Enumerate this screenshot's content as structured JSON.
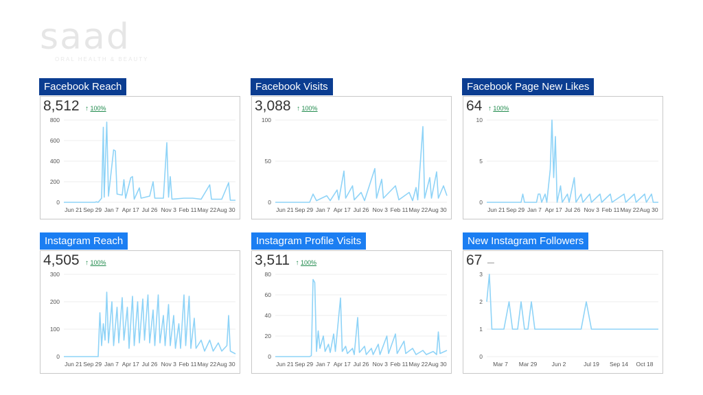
{
  "logo": {
    "wordmark": "saad",
    "tagline": "ORAL HEALTH & BEAUTY"
  },
  "colors": {
    "facebook_title_bg": "#0b3d91",
    "instagram_title_bg": "#1b7ef2",
    "line": "#8ed3f7",
    "positive_change": "#1f8a4c"
  },
  "panels": [
    {
      "id": "facebook-reach",
      "title": "Facebook Reach",
      "value": "8,512",
      "change_arrow": "↑",
      "change": "100%"
    },
    {
      "id": "facebook-visits",
      "title": "Facebook Visits",
      "value": "3,088",
      "change_arrow": "↑",
      "change": "100%"
    },
    {
      "id": "facebook-page-new-likes",
      "title": "Facebook Page New Likes",
      "value": "64",
      "change_arrow": "↑",
      "change": "100%"
    },
    {
      "id": "instagram-reach",
      "title": "Instagram Reach",
      "value": "4,505",
      "change_arrow": "↑",
      "change": "100%"
    },
    {
      "id": "instagram-profile-visits",
      "title": "Instagram Profile Visits",
      "value": "3,511",
      "change_arrow": "↑",
      "change": "100%"
    },
    {
      "id": "new-instagram-followers",
      "title": "New Instagram Followers",
      "value": "67",
      "change_arrow": "",
      "change": "",
      "change_dash": "—"
    }
  ],
  "chart_data": [
    {
      "type": "line",
      "title": "Facebook Reach",
      "ylim": [
        0,
        800
      ],
      "yticks": [
        0,
        200,
        400,
        600,
        800
      ],
      "grid": true,
      "xticks": [
        "Jun 21",
        "Sep 29",
        "Jan 7",
        "Apr 17",
        "Jul 26",
        "Nov 3",
        "Feb 11",
        "May 22",
        "Aug 30"
      ],
      "x_range": [
        0,
        1
      ],
      "series": [
        {
          "points": [
            [
              0,
              0
            ],
            [
              0.18,
              0
            ],
            [
              0.19,
              5
            ],
            [
              0.2,
              0
            ],
            [
              0.22,
              40
            ],
            [
              0.23,
              730
            ],
            [
              0.235,
              50
            ],
            [
              0.25,
              780
            ],
            [
              0.26,
              60
            ],
            [
              0.29,
              510
            ],
            [
              0.3,
              500
            ],
            [
              0.31,
              80
            ],
            [
              0.34,
              70
            ],
            [
              0.35,
              220
            ],
            [
              0.36,
              40
            ],
            [
              0.39,
              240
            ],
            [
              0.4,
              250
            ],
            [
              0.41,
              30
            ],
            [
              0.44,
              140
            ],
            [
              0.45,
              40
            ],
            [
              0.5,
              60
            ],
            [
              0.52,
              200
            ],
            [
              0.53,
              40
            ],
            [
              0.58,
              40
            ],
            [
              0.6,
              580
            ],
            [
              0.61,
              50
            ],
            [
              0.62,
              250
            ],
            [
              0.63,
              30
            ],
            [
              0.7,
              40
            ],
            [
              0.75,
              40
            ],
            [
              0.8,
              30
            ],
            [
              0.85,
              170
            ],
            [
              0.86,
              30
            ],
            [
              0.92,
              30
            ],
            [
              0.96,
              190
            ],
            [
              0.97,
              20
            ],
            [
              1,
              20
            ]
          ]
        }
      ]
    },
    {
      "type": "line",
      "title": "Facebook Visits",
      "ylim": [
        0,
        100
      ],
      "yticks": [
        0,
        50,
        100
      ],
      "grid": true,
      "xticks": [
        "Jun 21",
        "Sep 29",
        "Jan 7",
        "Apr 17",
        "Jul 26",
        "Nov 3",
        "Feb 11",
        "May 22",
        "Aug 30"
      ],
      "x_range": [
        0,
        1
      ],
      "series": [
        {
          "points": [
            [
              0,
              0
            ],
            [
              0.2,
              0
            ],
            [
              0.22,
              10
            ],
            [
              0.24,
              2
            ],
            [
              0.3,
              8
            ],
            [
              0.32,
              2
            ],
            [
              0.36,
              15
            ],
            [
              0.37,
              3
            ],
            [
              0.4,
              38
            ],
            [
              0.41,
              5
            ],
            [
              0.45,
              20
            ],
            [
              0.46,
              3
            ],
            [
              0.5,
              12
            ],
            [
              0.52,
              2
            ],
            [
              0.58,
              41
            ],
            [
              0.59,
              5
            ],
            [
              0.62,
              28
            ],
            [
              0.63,
              5
            ],
            [
              0.7,
              20
            ],
            [
              0.72,
              3
            ],
            [
              0.78,
              12
            ],
            [
              0.8,
              2
            ],
            [
              0.82,
              18
            ],
            [
              0.83,
              3
            ],
            [
              0.86,
              92
            ],
            [
              0.87,
              5
            ],
            [
              0.9,
              30
            ],
            [
              0.91,
              5
            ],
            [
              0.94,
              37
            ],
            [
              0.95,
              5
            ],
            [
              0.98,
              20
            ],
            [
              1,
              8
            ]
          ]
        }
      ]
    },
    {
      "type": "line",
      "title": "Facebook Page New Likes",
      "ylim": [
        0,
        10
      ],
      "yticks": [
        0,
        5,
        10
      ],
      "grid": true,
      "xticks": [
        "Jun 21",
        "Sep 29",
        "Jan 7",
        "Apr 17",
        "Jul 26",
        "Nov 3",
        "Feb 11",
        "May 22",
        "Aug 30"
      ],
      "x_range": [
        0,
        1
      ],
      "series": [
        {
          "points": [
            [
              0,
              0
            ],
            [
              0.2,
              0
            ],
            [
              0.21,
              1
            ],
            [
              0.22,
              0
            ],
            [
              0.29,
              0
            ],
            [
              0.3,
              1
            ],
            [
              0.31,
              1
            ],
            [
              0.32,
              0
            ],
            [
              0.34,
              1
            ],
            [
              0.35,
              0
            ],
            [
              0.37,
              4
            ],
            [
              0.38,
              10
            ],
            [
              0.39,
              3
            ],
            [
              0.4,
              8
            ],
            [
              0.41,
              0
            ],
            [
              0.43,
              2
            ],
            [
              0.44,
              0
            ],
            [
              0.47,
              1
            ],
            [
              0.48,
              0
            ],
            [
              0.5,
              2
            ],
            [
              0.51,
              3
            ],
            [
              0.52,
              0
            ],
            [
              0.55,
              1
            ],
            [
              0.56,
              0
            ],
            [
              0.6,
              1
            ],
            [
              0.61,
              0
            ],
            [
              0.66,
              1
            ],
            [
              0.67,
              0
            ],
            [
              0.72,
              1
            ],
            [
              0.73,
              0
            ],
            [
              0.8,
              1
            ],
            [
              0.81,
              0
            ],
            [
              0.86,
              1
            ],
            [
              0.87,
              0
            ],
            [
              0.92,
              1
            ],
            [
              0.93,
              0
            ],
            [
              0.96,
              1
            ],
            [
              0.97,
              0
            ],
            [
              1,
              0
            ]
          ]
        }
      ]
    },
    {
      "type": "line",
      "title": "Instagram Reach",
      "ylim": [
        0,
        300
      ],
      "yticks": [
        0,
        100,
        200,
        300
      ],
      "grid": true,
      "xticks": [
        "Jun 21",
        "Sep 29",
        "Jan 7",
        "Apr 17",
        "Jul 26",
        "Nov 3",
        "Feb 11",
        "May 22",
        "Aug 30"
      ],
      "x_range": [
        0,
        1
      ],
      "series": [
        {
          "points": [
            [
              0,
              0
            ],
            [
              0.2,
              0
            ],
            [
              0.21,
              160
            ],
            [
              0.22,
              40
            ],
            [
              0.23,
              120
            ],
            [
              0.24,
              60
            ],
            [
              0.25,
              235
            ],
            [
              0.26,
              50
            ],
            [
              0.28,
              200
            ],
            [
              0.29,
              40
            ],
            [
              0.31,
              180
            ],
            [
              0.32,
              50
            ],
            [
              0.34,
              215
            ],
            [
              0.35,
              60
            ],
            [
              0.37,
              180
            ],
            [
              0.38,
              30
            ],
            [
              0.4,
              220
            ],
            [
              0.41,
              40
            ],
            [
              0.43,
              200
            ],
            [
              0.44,
              50
            ],
            [
              0.46,
              210
            ],
            [
              0.47,
              60
            ],
            [
              0.49,
              225
            ],
            [
              0.5,
              50
            ],
            [
              0.52,
              170
            ],
            [
              0.53,
              40
            ],
            [
              0.55,
              225
            ],
            [
              0.56,
              50
            ],
            [
              0.58,
              150
            ],
            [
              0.59,
              40
            ],
            [
              0.61,
              190
            ],
            [
              0.62,
              40
            ],
            [
              0.64,
              150
            ],
            [
              0.65,
              30
            ],
            [
              0.67,
              120
            ],
            [
              0.68,
              30
            ],
            [
              0.7,
              225
            ],
            [
              0.71,
              40
            ],
            [
              0.73,
              220
            ],
            [
              0.74,
              30
            ],
            [
              0.76,
              140
            ],
            [
              0.77,
              30
            ],
            [
              0.8,
              60
            ],
            [
              0.82,
              20
            ],
            [
              0.85,
              60
            ],
            [
              0.87,
              20
            ],
            [
              0.9,
              50
            ],
            [
              0.92,
              20
            ],
            [
              0.95,
              40
            ],
            [
              0.96,
              150
            ],
            [
              0.97,
              20
            ],
            [
              1,
              10
            ]
          ]
        }
      ]
    },
    {
      "type": "line",
      "title": "Instagram Profile Visits",
      "ylim": [
        0,
        80
      ],
      "yticks": [
        0,
        20,
        40,
        60,
        80
      ],
      "grid": true,
      "xticks": [
        "Jun 21",
        "Sep 29",
        "Jan 7",
        "Apr 17",
        "Jul 26",
        "Nov 3",
        "Feb 11",
        "May 22",
        "Aug 30"
      ],
      "x_range": [
        0,
        1
      ],
      "series": [
        {
          "points": [
            [
              0,
              0
            ],
            [
              0.2,
              0
            ],
            [
              0.21,
              1
            ],
            [
              0.22,
              75
            ],
            [
              0.23,
              72
            ],
            [
              0.24,
              5
            ],
            [
              0.25,
              25
            ],
            [
              0.26,
              8
            ],
            [
              0.28,
              20
            ],
            [
              0.29,
              5
            ],
            [
              0.31,
              12
            ],
            [
              0.32,
              4
            ],
            [
              0.34,
              22
            ],
            [
              0.35,
              5
            ],
            [
              0.38,
              57
            ],
            [
              0.39,
              5
            ],
            [
              0.41,
              10
            ],
            [
              0.42,
              3
            ],
            [
              0.45,
              8
            ],
            [
              0.46,
              2
            ],
            [
              0.48,
              38
            ],
            [
              0.49,
              4
            ],
            [
              0.52,
              10
            ],
            [
              0.53,
              2
            ],
            [
              0.56,
              8
            ],
            [
              0.57,
              2
            ],
            [
              0.6,
              12
            ],
            [
              0.61,
              2
            ],
            [
              0.65,
              20
            ],
            [
              0.66,
              3
            ],
            [
              0.7,
              22
            ],
            [
              0.71,
              3
            ],
            [
              0.75,
              15
            ],
            [
              0.76,
              3
            ],
            [
              0.8,
              8
            ],
            [
              0.82,
              2
            ],
            [
              0.86,
              6
            ],
            [
              0.88,
              2
            ],
            [
              0.92,
              5
            ],
            [
              0.94,
              2
            ],
            [
              0.95,
              24
            ],
            [
              0.96,
              3
            ],
            [
              1,
              6
            ]
          ]
        }
      ]
    },
    {
      "type": "line",
      "title": "New Instagram Followers",
      "ylim": [
        0,
        3
      ],
      "yticks": [
        0,
        1,
        2,
        3
      ],
      "grid": true,
      "xticks": [
        "Mar 7",
        "Mar 29",
        "Jun 2",
        "Jul 19",
        "Sep 14",
        "Oct 18"
      ],
      "xtick_pos": [
        0.08,
        0.24,
        0.42,
        0.61,
        0.77,
        0.92
      ],
      "x_range": [
        0,
        1
      ],
      "series": [
        {
          "points": [
            [
              0,
              2
            ],
            [
              0.015,
              3
            ],
            [
              0.03,
              1
            ],
            [
              0.1,
              1
            ],
            [
              0.13,
              2
            ],
            [
              0.15,
              1
            ],
            [
              0.18,
              1
            ],
            [
              0.2,
              2
            ],
            [
              0.22,
              1
            ],
            [
              0.24,
              1
            ],
            [
              0.26,
              2
            ],
            [
              0.28,
              1
            ],
            [
              0.55,
              1
            ],
            [
              0.58,
              2
            ],
            [
              0.61,
              1
            ],
            [
              0.7,
              1
            ],
            [
              1,
              1
            ]
          ]
        }
      ]
    }
  ]
}
